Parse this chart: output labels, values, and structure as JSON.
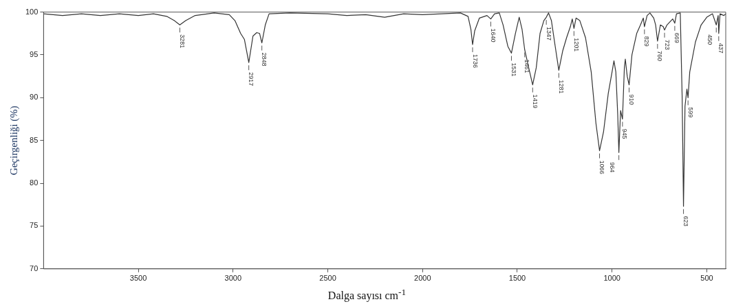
{
  "chart_data": {
    "type": "line",
    "xlabel": "Dalga sayısı cm$^{-1}$",
    "ylabel": "Geçirgenliği (%)",
    "xlim": [
      4000,
      400
    ],
    "xticks": [
      3500,
      3000,
      2500,
      2000,
      1500,
      1000,
      500
    ],
    "ylim": [
      70,
      100
    ],
    "yticks": [
      70,
      75,
      80,
      85,
      90,
      95,
      100
    ],
    "grid": false,
    "legend": false,
    "marker": "none",
    "line_style": "solid",
    "series": [
      {
        "color": "#333333",
        "x": [
          4000,
          3900,
          3800,
          3700,
          3600,
          3500,
          3420,
          3350,
          3310,
          3281,
          3250,
          3200,
          3100,
          3020,
          2990,
          2960,
          2940,
          2917,
          2895,
          2875,
          2860,
          2848,
          2830,
          2810,
          2700,
          2500,
          2400,
          2300,
          2200,
          2100,
          2000,
          1900,
          1800,
          1760,
          1745,
          1736,
          1725,
          1700,
          1660,
          1640,
          1620,
          1595,
          1575,
          1550,
          1531,
          1510,
          1490,
          1475,
          1461,
          1440,
          1419,
          1400,
          1380,
          1360,
          1347,
          1335,
          1320,
          1300,
          1281,
          1260,
          1240,
          1220,
          1210,
          1201,
          1190,
          1170,
          1140,
          1110,
          1085,
          1066,
          1045,
          1020,
          1000,
          990,
          980,
          970,
          964,
          955,
          945,
          935,
          930,
          920,
          910,
          895,
          870,
          850,
          835,
          829,
          815,
          800,
          780,
          770,
          760,
          745,
          730,
          723,
          710,
          680,
          669,
          660,
          640,
          630,
          623,
          615,
          605,
          599,
          590,
          560,
          530,
          500,
          470,
          450,
          440,
          437,
          430,
          410,
          400
        ],
        "values": [
          99.8,
          99.6,
          99.8,
          99.6,
          99.8,
          99.6,
          99.8,
          99.5,
          99.0,
          98.5,
          99.0,
          99.6,
          99.9,
          99.7,
          99.0,
          97.5,
          96.8,
          94.1,
          97.2,
          97.6,
          97.5,
          96.4,
          98.5,
          99.8,
          99.9,
          99.8,
          99.6,
          99.7,
          99.4,
          99.8,
          99.7,
          99.8,
          99.9,
          99.5,
          98.0,
          96.2,
          97.8,
          99.3,
          99.6,
          99.2,
          99.8,
          99.9,
          98.5,
          96.0,
          95.2,
          97.5,
          99.4,
          98.0,
          95.6,
          93.5,
          91.5,
          93.5,
          97.5,
          99.0,
          99.4,
          99.9,
          99.0,
          96.0,
          93.2,
          95.5,
          97.0,
          98.3,
          99.2,
          98.1,
          99.3,
          99.0,
          97.0,
          93.0,
          87.0,
          83.8,
          86.0,
          90.5,
          93.0,
          94.3,
          93.0,
          88.0,
          83.6,
          88.5,
          87.5,
          93.5,
          94.5,
          92.5,
          91.5,
          95.0,
          97.5,
          98.5,
          99.3,
          98.3,
          99.6,
          99.9,
          99.3,
          98.5,
          96.6,
          98.5,
          98.3,
          97.9,
          98.5,
          99.2,
          98.7,
          99.8,
          99.9,
          90.0,
          77.3,
          89.0,
          91.0,
          90.0,
          93.0,
          96.5,
          98.5,
          99.4,
          99.8,
          98.5,
          99.6,
          97.5,
          99.8,
          99.6,
          99.8
        ]
      }
    ],
    "annotations": [
      {
        "text": "3281",
        "x": 3281,
        "y": 98.5
      },
      {
        "text": "2917",
        "x": 2917,
        "y": 94.1
      },
      {
        "text": "2848",
        "x": 2848,
        "y": 96.4
      },
      {
        "text": "1736",
        "x": 1736,
        "y": 96.2
      },
      {
        "text": "1640",
        "x": 1640,
        "y": 99.2
      },
      {
        "text": "1531",
        "x": 1531,
        "y": 95.2
      },
      {
        "text": "1461",
        "x": 1461,
        "y": 95.6
      },
      {
        "text": "1419",
        "x": 1419,
        "y": 91.5
      },
      {
        "text": "1347",
        "x": 1347,
        "y": 99.4
      },
      {
        "text": "1281",
        "x": 1281,
        "y": 93.2
      },
      {
        "text": "1201",
        "x": 1201,
        "y": 98.1
      },
      {
        "text": "1066",
        "x": 1066,
        "y": 83.8
      },
      {
        "text": "964",
        "x": 964,
        "y": 83.6
      },
      {
        "text": "945",
        "x": 945,
        "y": 87.5
      },
      {
        "text": "910",
        "x": 910,
        "y": 91.5
      },
      {
        "text": "829",
        "x": 829,
        "y": 98.3
      },
      {
        "text": "760",
        "x": 760,
        "y": 96.6
      },
      {
        "text": "723",
        "x": 723,
        "y": 97.9
      },
      {
        "text": "669",
        "x": 669,
        "y": 98.7
      },
      {
        "text": "623",
        "x": 623,
        "y": 77.3
      },
      {
        "text": "599",
        "x": 599,
        "y": 90.0
      },
      {
        "text": "450",
        "x": 450,
        "y": 98.5
      },
      {
        "text": "437",
        "x": 437,
        "y": 97.5
      }
    ]
  }
}
